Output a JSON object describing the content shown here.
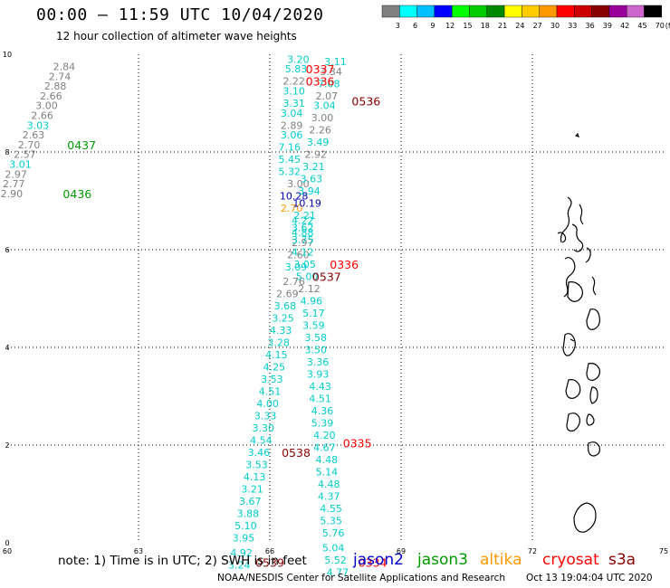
{
  "header": {
    "title": "00:00 – 11:59 UTC 10/04/2020",
    "subtitle": "12 hour collection of altimeter wave heights"
  },
  "legend": {
    "unit": "(ft)",
    "bins": [
      {
        "label": "3",
        "color": "#808080"
      },
      {
        "label": "6",
        "color": "#00ffff"
      },
      {
        "label": "9",
        "color": "#00bfff"
      },
      {
        "label": "12",
        "color": "#0000ff"
      },
      {
        "label": "15",
        "color": "#00ff00"
      },
      {
        "label": "18",
        "color": "#00cc00"
      },
      {
        "label": "21",
        "color": "#008800"
      },
      {
        "label": "24",
        "color": "#ffff00"
      },
      {
        "label": "27",
        "color": "#ffcc00"
      },
      {
        "label": "30",
        "color": "#ff9900"
      },
      {
        "label": "33",
        "color": "#ff0000"
      },
      {
        "label": "36",
        "color": "#cc0000"
      },
      {
        "label": "39",
        "color": "#880000"
      },
      {
        "label": "42",
        "color": "#990099"
      },
      {
        "label": "45",
        "color": "#cc66cc"
      },
      {
        "label": "70",
        "color": "#000000"
      }
    ]
  },
  "axes": {
    "x_ticks": [
      "60",
      "63",
      "66",
      "69",
      "72",
      "75"
    ],
    "y_ticks": [
      "0",
      "2",
      "4",
      "6",
      "8",
      "10"
    ]
  },
  "colors": {
    "gray": "#808080",
    "cyan": "#00cccc",
    "dark_red": "#880000",
    "red": "#ff0000",
    "green": "#009900",
    "blue": "#0000aa",
    "orange": "#ff9900"
  },
  "footer": {
    "note": "note:  1) Time is in UTC;  2) SWH is in feet",
    "credit": "NOAA/NESDIS Center for Satellite Applications and Research",
    "timestamp": "Oct 13 19:04:04 UTC 2020"
  },
  "satellites": [
    {
      "name": "jason2",
      "color": "#0000cc"
    },
    {
      "name": "jason3",
      "color": "#009900"
    },
    {
      "name": "altika",
      "color": "#ff9900"
    },
    {
      "name": "cryosat",
      "color": "#ff0000"
    },
    {
      "name": "s3a",
      "color": "#880000"
    }
  ],
  "tracks": [
    {
      "name": "track-west-gray",
      "values": [
        {
          "lon": 61.3,
          "lat": 9.75,
          "v": "2.84",
          "c": "gray"
        },
        {
          "lon": 61.2,
          "lat": 9.55,
          "v": "2.74",
          "c": "gray"
        },
        {
          "lon": 61.1,
          "lat": 9.35,
          "v": "2.88",
          "c": "gray"
        },
        {
          "lon": 61.0,
          "lat": 9.15,
          "v": "2.66",
          "c": "gray"
        },
        {
          "lon": 60.9,
          "lat": 8.95,
          "v": "3.00",
          "c": "gray"
        },
        {
          "lon": 60.8,
          "lat": 8.75,
          "v": "2.66",
          "c": "gray"
        },
        {
          "lon": 60.7,
          "lat": 8.55,
          "v": "3.03",
          "c": "cyan"
        },
        {
          "lon": 60.6,
          "lat": 8.35,
          "v": "2.63",
          "c": "gray"
        },
        {
          "lon": 60.5,
          "lat": 8.15,
          "v": "2.70",
          "c": "gray"
        },
        {
          "lon": 60.4,
          "lat": 7.95,
          "v": "2.57",
          "c": "gray"
        },
        {
          "lon": 60.3,
          "lat": 7.75,
          "v": "3.01",
          "c": "cyan"
        },
        {
          "lon": 60.2,
          "lat": 7.55,
          "v": "2.97",
          "c": "gray"
        },
        {
          "lon": 60.15,
          "lat": 7.35,
          "v": "2.77",
          "c": "gray"
        },
        {
          "lon": 60.1,
          "lat": 7.15,
          "v": "2.90",
          "c": "gray"
        }
      ]
    },
    {
      "name": "track-center-a",
      "values": [
        {
          "lon": 66.65,
          "lat": 9.9,
          "v": "3.20",
          "c": "cyan"
        },
        {
          "lon": 66.6,
          "lat": 9.7,
          "v": "5.83",
          "c": "cyan"
        },
        {
          "lon": 66.55,
          "lat": 9.45,
          "v": "2.22",
          "c": "gray"
        },
        {
          "lon": 66.55,
          "lat": 9.25,
          "v": "3.10",
          "c": "cyan"
        },
        {
          "lon": 66.55,
          "lat": 9.0,
          "v": "3.31",
          "c": "cyan"
        },
        {
          "lon": 66.5,
          "lat": 8.8,
          "v": "3.04",
          "c": "cyan"
        },
        {
          "lon": 66.5,
          "lat": 8.55,
          "v": "2.89",
          "c": "gray"
        },
        {
          "lon": 66.5,
          "lat": 8.35,
          "v": "3.06",
          "c": "cyan"
        },
        {
          "lon": 66.45,
          "lat": 8.1,
          "v": "7.16",
          "c": "cyan"
        },
        {
          "lon": 66.45,
          "lat": 7.85,
          "v": "5.45",
          "c": "cyan"
        },
        {
          "lon": 66.45,
          "lat": 7.6,
          "v": "5.32",
          "c": "cyan"
        },
        {
          "lon": 66.65,
          "lat": 7.35,
          "v": "3.00",
          "c": "gray"
        },
        {
          "lon": 66.55,
          "lat": 7.1,
          "v": "10.28",
          "c": "blue"
        },
        {
          "lon": 66.5,
          "lat": 6.85,
          "v": "2.70",
          "c": "orange"
        },
        {
          "lon": 66.75,
          "lat": 6.6,
          "v": "4.22",
          "c": "cyan"
        },
        {
          "lon": 66.75,
          "lat": 6.35,
          "v": "4.88",
          "c": "cyan"
        },
        {
          "lon": 66.75,
          "lat": 6.15,
          "v": "2.97",
          "c": "gray"
        },
        {
          "lon": 66.65,
          "lat": 5.9,
          "v": "2.60",
          "c": "gray"
        },
        {
          "lon": 66.6,
          "lat": 5.65,
          "v": "3.09",
          "c": "cyan"
        },
        {
          "lon": 66.55,
          "lat": 5.35,
          "v": "2.76",
          "c": "gray"
        },
        {
          "lon": 66.4,
          "lat": 5.1,
          "v": "2.69",
          "c": "gray"
        },
        {
          "lon": 66.35,
          "lat": 4.85,
          "v": "3.68",
          "c": "cyan"
        },
        {
          "lon": 66.3,
          "lat": 4.6,
          "v": "3.25",
          "c": "cyan"
        },
        {
          "lon": 66.25,
          "lat": 4.35,
          "v": "4.33",
          "c": "cyan"
        },
        {
          "lon": 66.2,
          "lat": 4.1,
          "v": "3.28",
          "c": "cyan"
        },
        {
          "lon": 66.15,
          "lat": 3.85,
          "v": "4.15",
          "c": "cyan"
        },
        {
          "lon": 66.1,
          "lat": 3.6,
          "v": "4.25",
          "c": "cyan"
        },
        {
          "lon": 66.05,
          "lat": 3.35,
          "v": "3.53",
          "c": "cyan"
        },
        {
          "lon": 66.0,
          "lat": 3.1,
          "v": "4.51",
          "c": "cyan"
        },
        {
          "lon": 65.95,
          "lat": 2.85,
          "v": "4.00",
          "c": "cyan"
        },
        {
          "lon": 65.9,
          "lat": 2.6,
          "v": "3.33",
          "c": "cyan"
        },
        {
          "lon": 65.85,
          "lat": 2.35,
          "v": "3.30",
          "c": "cyan"
        },
        {
          "lon": 65.8,
          "lat": 2.1,
          "v": "4.54",
          "c": "cyan"
        },
        {
          "lon": 65.75,
          "lat": 1.85,
          "v": "3.46",
          "c": "cyan"
        },
        {
          "lon": 65.7,
          "lat": 1.6,
          "v": "3.53",
          "c": "cyan"
        },
        {
          "lon": 65.65,
          "lat": 1.35,
          "v": "4.13",
          "c": "cyan"
        },
        {
          "lon": 65.6,
          "lat": 1.1,
          "v": "3.21",
          "c": "cyan"
        },
        {
          "lon": 65.55,
          "lat": 0.85,
          "v": "3.67",
          "c": "cyan"
        },
        {
          "lon": 65.5,
          "lat": 0.6,
          "v": "3.88",
          "c": "cyan"
        },
        {
          "lon": 65.45,
          "lat": 0.35,
          "v": "5.10",
          "c": "cyan"
        },
        {
          "lon": 65.4,
          "lat": 0.1,
          "v": "3.95",
          "c": "cyan"
        },
        {
          "lon": 65.35,
          "lat": -0.15,
          "v": "4.92",
          "c": "cyan"
        },
        {
          "lon": 65.3,
          "lat": -0.4,
          "v": "3.24",
          "c": "cyan"
        }
      ]
    },
    {
      "name": "track-center-b",
      "values": [
        {
          "lon": 67.5,
          "lat": 9.85,
          "v": "3.11",
          "c": "cyan"
        },
        {
          "lon": 67.4,
          "lat": 9.65,
          "v": "3.34",
          "c": "gray"
        },
        {
          "lon": 67.35,
          "lat": 9.4,
          "v": "7.08",
          "c": "cyan"
        },
        {
          "lon": 67.3,
          "lat": 9.15,
          "v": "2.07",
          "c": "gray"
        },
        {
          "lon": 67.25,
          "lat": 8.95,
          "v": "3.04",
          "c": "cyan"
        },
        {
          "lon": 67.2,
          "lat": 8.7,
          "v": "3.00",
          "c": "gray"
        },
        {
          "lon": 67.15,
          "lat": 8.45,
          "v": "2.26",
          "c": "gray"
        },
        {
          "lon": 67.1,
          "lat": 8.2,
          "v": "3.49",
          "c": "cyan"
        },
        {
          "lon": 67.05,
          "lat": 7.95,
          "v": "2.92",
          "c": "gray"
        },
        {
          "lon": 67.0,
          "lat": 7.7,
          "v": "3.21",
          "c": "cyan"
        },
        {
          "lon": 66.95,
          "lat": 7.45,
          "v": "3.63",
          "c": "cyan"
        },
        {
          "lon": 66.9,
          "lat": 7.2,
          "v": "3.94",
          "c": "cyan"
        },
        {
          "lon": 66.85,
          "lat": 6.95,
          "v": "10.19",
          "c": "blue"
        },
        {
          "lon": 66.8,
          "lat": 6.7,
          "v": "2.21",
          "c": "cyan"
        },
        {
          "lon": 66.75,
          "lat": 6.45,
          "v": "3.62",
          "c": "cyan"
        },
        {
          "lon": 66.75,
          "lat": 6.2,
          "v": "3.75",
          "c": "cyan"
        },
        {
          "lon": 66.75,
          "lat": 5.95,
          "v": "4.12",
          "c": "cyan"
        },
        {
          "lon": 66.8,
          "lat": 5.7,
          "v": "3.05",
          "c": "cyan"
        },
        {
          "lon": 66.85,
          "lat": 5.45,
          "v": "5.00",
          "c": "cyan"
        },
        {
          "lon": 66.9,
          "lat": 5.2,
          "v": "2.12",
          "c": "gray"
        },
        {
          "lon": 66.95,
          "lat": 4.95,
          "v": "4.96",
          "c": "cyan"
        },
        {
          "lon": 67.0,
          "lat": 4.7,
          "v": "5.17",
          "c": "cyan"
        },
        {
          "lon": 67.0,
          "lat": 4.45,
          "v": "3.59",
          "c": "cyan"
        },
        {
          "lon": 67.05,
          "lat": 4.2,
          "v": "3.58",
          "c": "cyan"
        },
        {
          "lon": 67.05,
          "lat": 3.95,
          "v": "3.50",
          "c": "cyan"
        },
        {
          "lon": 67.1,
          "lat": 3.7,
          "v": "3.36",
          "c": "cyan"
        },
        {
          "lon": 67.1,
          "lat": 3.45,
          "v": "3.93",
          "c": "cyan"
        },
        {
          "lon": 67.15,
          "lat": 3.2,
          "v": "4.43",
          "c": "cyan"
        },
        {
          "lon": 67.15,
          "lat": 2.95,
          "v": "4.51",
          "c": "cyan"
        },
        {
          "lon": 67.2,
          "lat": 2.7,
          "v": "4.36",
          "c": "cyan"
        },
        {
          "lon": 67.2,
          "lat": 2.45,
          "v": "5.39",
          "c": "cyan"
        },
        {
          "lon": 67.25,
          "lat": 2.2,
          "v": "4.20",
          "c": "cyan"
        },
        {
          "lon": 67.25,
          "lat": 1.95,
          "v": "4.67",
          "c": "cyan"
        },
        {
          "lon": 67.3,
          "lat": 1.7,
          "v": "4.48",
          "c": "cyan"
        },
        {
          "lon": 67.3,
          "lat": 1.45,
          "v": "5.14",
          "c": "cyan"
        },
        {
          "lon": 67.35,
          "lat": 1.2,
          "v": "4.48",
          "c": "cyan"
        },
        {
          "lon": 67.35,
          "lat": 0.95,
          "v": "4.37",
          "c": "cyan"
        },
        {
          "lon": 67.4,
          "lat": 0.7,
          "v": "4.55",
          "c": "cyan"
        },
        {
          "lon": 67.4,
          "lat": 0.45,
          "v": "5.35",
          "c": "cyan"
        },
        {
          "lon": 67.45,
          "lat": 0.2,
          "v": "5.76",
          "c": "cyan"
        },
        {
          "lon": 67.45,
          "lat": -0.05,
          "v": "5.04",
          "c": "cyan"
        },
        {
          "lon": 67.5,
          "lat": -0.3,
          "v": "5.52",
          "c": "cyan"
        },
        {
          "lon": 67.55,
          "lat": -0.55,
          "v": "4.77",
          "c": "cyan"
        }
      ]
    }
  ],
  "time_labels": [
    {
      "lon": 61.7,
      "lat": 8.15,
      "t": "0437",
      "c": "green"
    },
    {
      "lon": 61.6,
      "lat": 7.15,
      "t": "0436",
      "c": "green"
    },
    {
      "lon": 67.15,
      "lat": 9.7,
      "t": "0337",
      "c": "red"
    },
    {
      "lon": 67.15,
      "lat": 9.45,
      "t": "0336",
      "c": "red"
    },
    {
      "lon": 68.2,
      "lat": 9.05,
      "t": "0536",
      "c": "dark_red"
    },
    {
      "lon": 67.7,
      "lat": 5.7,
      "t": "0336",
      "c": "red"
    },
    {
      "lon": 67.3,
      "lat": 5.45,
      "t": "0537",
      "c": "dark_red"
    },
    {
      "lon": 66.6,
      "lat": 1.85,
      "t": "0538",
      "c": "dark_red"
    },
    {
      "lon": 68.0,
      "lat": 2.05,
      "t": "0335",
      "c": "red"
    },
    {
      "lon": 66.0,
      "lat": -0.4,
      "t": "0539",
      "c": "dark_red"
    },
    {
      "lon": 68.35,
      "lat": -0.4,
      "t": "0334",
      "c": "red"
    }
  ]
}
